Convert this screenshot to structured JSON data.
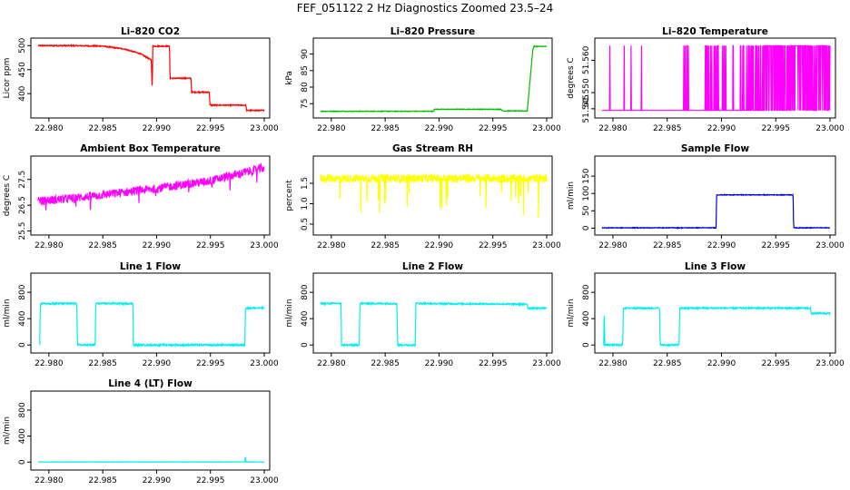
{
  "figure_title": "FEF_051122  2 Hz Diagnostics Zoomed 23.5–24",
  "chart_data": [
    {
      "type": "line",
      "title": "Li–820 CO2",
      "ylabel": "Licor ppm",
      "color": "#ff0000",
      "xlim": [
        22.979,
        23.0
      ],
      "ylim": [
        355,
        510
      ],
      "xticks": [
        "22.980",
        "22.985",
        "22.990",
        "22.995",
        "23.000"
      ],
      "xtick_values": [
        22.98,
        22.985,
        22.99,
        22.995,
        23.0
      ],
      "yticks": [
        "400",
        "450",
        "500"
      ],
      "ytick_values": [
        400,
        450,
        500
      ],
      "noise": 1.2,
      "spike_prob": 0,
      "x": [
        22.979,
        22.982,
        22.985,
        22.987,
        22.9885,
        22.9895,
        22.9896,
        22.98965,
        22.9897,
        22.9912,
        22.99125,
        22.9932,
        22.99325,
        22.9949,
        22.99495,
        22.9983,
        22.99835,
        23.0
      ],
      "values": [
        500,
        500,
        499,
        493,
        483,
        470,
        410,
        500,
        499,
        499,
        432,
        432,
        403,
        403,
        376,
        376,
        365,
        365
      ]
    },
    {
      "type": "line",
      "title": "Li–820 Pressure",
      "ylabel": "kPa",
      "color": "#00bb00",
      "xlim": [
        22.979,
        23.0
      ],
      "ylim": [
        71.5,
        94
      ],
      "xticks": [
        "22.980",
        "22.985",
        "22.990",
        "22.995",
        "23.000"
      ],
      "xtick_values": [
        22.98,
        22.985,
        22.99,
        22.995,
        23.0
      ],
      "yticks": [
        "75",
        "80",
        "85",
        "90"
      ],
      "ytick_values": [
        75,
        80,
        85,
        90
      ],
      "noise": 0.1,
      "spike_prob": 0,
      "x": [
        22.979,
        22.9895,
        22.98955,
        22.9958,
        22.99585,
        22.9982,
        22.9987,
        22.9988,
        23.0
      ],
      "values": [
        72.7,
        72.7,
        73.3,
        73.3,
        72.8,
        72.8,
        91,
        92.3,
        92.3
      ]
    },
    {
      "type": "line",
      "title": "Li–820 Temperature",
      "ylabel": "degrees C",
      "color": "#ff00ff",
      "xlim": [
        22.979,
        23.0
      ],
      "ylim": [
        51.543,
        51.566
      ],
      "xticks": [
        "22.980",
        "22.985",
        "22.990",
        "22.995",
        "23.000"
      ],
      "xtick_values": [
        22.98,
        22.985,
        22.99,
        22.995,
        23.0
      ],
      "yticks": [
        "51.545",
        "51.550",
        "51.560"
      ],
      "ytick_values": [
        51.545,
        51.55,
        51.56
      ],
      "noise": 0,
      "spike_prob": 0,
      "mode": "spiky",
      "base": 51.5445,
      "peak": 51.5645,
      "x": [
        22.979,
        23.0
      ],
      "values": [
        51.5445,
        51.5445
      ]
    },
    {
      "type": "line",
      "title": "Ambient Box Temperature",
      "ylabel": "degrees C",
      "color": "#ff00ff",
      "xlim": [
        22.979,
        23.0
      ],
      "ylim": [
        25.45,
        28.3
      ],
      "xticks": [
        "22.980",
        "22.985",
        "22.990",
        "22.995",
        "23.000"
      ],
      "xtick_values": [
        22.98,
        22.985,
        22.99,
        22.995,
        23.0
      ],
      "yticks": [
        "25.5",
        "26.5",
        "27.5"
      ],
      "ytick_values": [
        25.5,
        26.5,
        27.5
      ],
      "noise": 0.17,
      "spike_prob": 0.01,
      "spike_dir": -1,
      "spike_size": 0.6,
      "x": [
        22.979,
        22.984,
        22.99,
        22.995,
        23.0
      ],
      "values": [
        26.65,
        26.85,
        27.15,
        27.45,
        27.95
      ]
    },
    {
      "type": "line",
      "title": "Gas Stream RH",
      "ylabel": "percent",
      "color": "#ffff00",
      "xlim": [
        22.979,
        23.0
      ],
      "ylim": [
        0.3,
        2.1
      ],
      "xticks": [
        "22.980",
        "22.985",
        "22.990",
        "22.995",
        "23.000"
      ],
      "xtick_values": [
        22.98,
        22.985,
        22.99,
        22.995,
        23.0
      ],
      "yticks": [
        "0.5",
        "1.0",
        "1.5"
      ],
      "ytick_values": [
        0.5,
        1.0,
        1.5
      ],
      "noise": 0.1,
      "spike_prob": 0.03,
      "spike_dir": -1,
      "spike_size": 0.9,
      "x": [
        22.979,
        23.0
      ],
      "values": [
        1.62,
        1.62
      ]
    },
    {
      "type": "line",
      "title": "Sample Flow",
      "ylabel": "ml/min",
      "color": "#0000cc",
      "xlim": [
        22.979,
        23.0
      ],
      "ylim": [
        -12,
        200
      ],
      "xticks": [
        "22.980",
        "22.985",
        "22.990",
        "22.995",
        "23.000"
      ],
      "xtick_values": [
        22.98,
        22.985,
        22.99,
        22.995,
        23.0
      ],
      "yticks": [
        "0",
        "50",
        "100",
        "150"
      ],
      "ytick_values": [
        0,
        50,
        100,
        150
      ],
      "noise": 1,
      "spike_prob": 0,
      "x": [
        22.979,
        22.9895,
        22.98955,
        22.9966,
        22.99665,
        23.0
      ],
      "values": [
        1,
        1,
        96,
        96,
        1,
        1
      ]
    },
    {
      "type": "line",
      "title": "Line 1 Flow",
      "ylabel": "ml/min",
      "color": "#00eeee",
      "xlim": [
        22.979,
        23.0
      ],
      "ylim": [
        -80,
        1050
      ],
      "xticks": [
        "22.980",
        "22.985",
        "22.990",
        "22.995",
        "23.000"
      ],
      "xtick_values": [
        22.98,
        22.985,
        22.99,
        22.995,
        23.0
      ],
      "yticks": [
        "0",
        "400",
        "800"
      ],
      "ytick_values": [
        0,
        400,
        800
      ],
      "noise": 13,
      "spike_prob": 0,
      "x": [
        22.97915,
        22.9792,
        22.9826,
        22.98265,
        22.9843,
        22.98435,
        22.9878,
        22.98785,
        22.9982,
        22.99825,
        23.0
      ],
      "values": [
        0,
        630,
        630,
        0,
        0,
        630,
        630,
        0,
        0,
        560,
        560
      ]
    },
    {
      "type": "line",
      "title": "Line 2 Flow",
      "ylabel": "ml/min",
      "color": "#00eeee",
      "xlim": [
        22.979,
        23.0
      ],
      "ylim": [
        -80,
        1050
      ],
      "xticks": [
        "22.980",
        "22.985",
        "22.990",
        "22.995",
        "23.000"
      ],
      "xtick_values": [
        22.98,
        22.985,
        22.99,
        22.995,
        23.0
      ],
      "yticks": [
        "0",
        "400",
        "800"
      ],
      "ytick_values": [
        0,
        400,
        800
      ],
      "noise": 12,
      "spike_prob": 0,
      "x": [
        22.979,
        22.9809,
        22.98095,
        22.9826,
        22.98265,
        22.9861,
        22.98615,
        22.9878,
        22.98785,
        22.9982,
        22.99825,
        23.0
      ],
      "values": [
        630,
        630,
        0,
        0,
        630,
        630,
        0,
        0,
        630,
        620,
        560,
        560
      ]
    },
    {
      "type": "line",
      "title": "Line 3 Flow",
      "ylabel": "ml/min",
      "color": "#00eeee",
      "xlim": [
        22.979,
        23.0
      ],
      "ylim": [
        -80,
        1050
      ],
      "xticks": [
        "22.980",
        "22.985",
        "22.990",
        "22.995",
        "23.000"
      ],
      "xtick_values": [
        22.98,
        22.985,
        22.99,
        22.995,
        23.0
      ],
      "yticks": [
        "0",
        "400",
        "800"
      ],
      "ytick_values": [
        0,
        400,
        800
      ],
      "noise": 12,
      "spike_prob": 0,
      "x": [
        22.97915,
        22.9792,
        22.97925,
        22.9809,
        22.98095,
        22.9843,
        22.98435,
        22.9861,
        22.98615,
        22.9982,
        22.99825,
        23.0
      ],
      "values": [
        0,
        560,
        0,
        0,
        560,
        560,
        0,
        0,
        560,
        560,
        480,
        480
      ]
    },
    {
      "type": "line",
      "title": "Line 4 (LT) Flow",
      "ylabel": "ml/min",
      "color": "#00eeee",
      "xlim": [
        22.979,
        23.0
      ],
      "ylim": [
        -80,
        1050
      ],
      "xticks": [
        "22.980",
        "22.985",
        "22.990",
        "22.995",
        "23.000"
      ],
      "xtick_values": [
        22.98,
        22.985,
        22.99,
        22.995,
        23.0
      ],
      "yticks": [
        "0",
        "400",
        "800"
      ],
      "ytick_values": [
        0,
        400,
        800
      ],
      "noise": 2,
      "spike_prob": 0,
      "x": [
        22.979,
        22.9982,
        22.99825,
        22.9983,
        22.99835,
        23.0
      ],
      "values": [
        2,
        2,
        100,
        2,
        2,
        2
      ]
    }
  ]
}
